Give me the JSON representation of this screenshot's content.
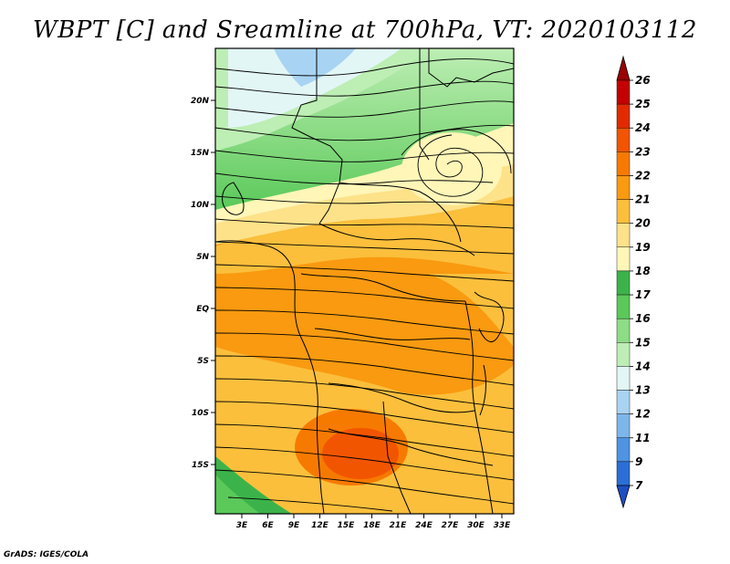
{
  "title": "WBPT [C] and Sreamline at 700hPa, VT: 2020103112",
  "footer": "GrADS: IGES/COLA",
  "map": {
    "lat_labels": [
      "20N",
      "15N",
      "10N",
      "5N",
      "EQ",
      "5S",
      "10S",
      "15S"
    ],
    "lon_labels": [
      "3E",
      "6E",
      "9E",
      "12E",
      "15E",
      "18E",
      "21E",
      "24E",
      "27E",
      "30E",
      "33E"
    ]
  },
  "colorbar": {
    "levels": [
      "26",
      "25",
      "24",
      "23",
      "22",
      "21",
      "20",
      "19",
      "18",
      "17",
      "16",
      "15",
      "14",
      "13",
      "12",
      "11",
      "9",
      "7"
    ],
    "colors": [
      "#9b0000",
      "#c40000",
      "#e22a00",
      "#f25500",
      "#f77a00",
      "#f99a10",
      "#fbbf3c",
      "#fde28a",
      "#fff6b8",
      "#3cb34a",
      "#5ac95a",
      "#8ddc86",
      "#bdeeb4",
      "#e2f6f6",
      "#a9d3f2",
      "#7db6ec",
      "#4f93e2",
      "#2b6fd6",
      "#1e50c4"
    ]
  }
}
